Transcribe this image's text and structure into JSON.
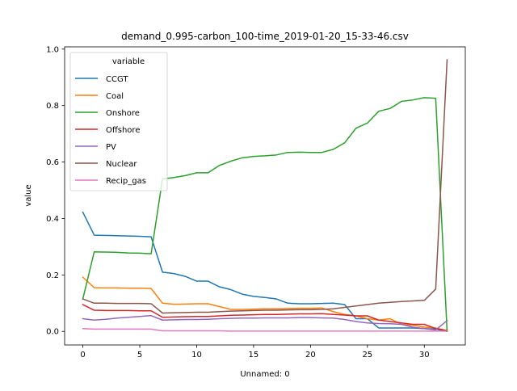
{
  "chart_data": {
    "type": "line",
    "title": "demand_0.995-carbon_100-time_2019-01-20_15-33-46.csv",
    "xlabel": "Unnamed: 0",
    "ylabel": "value",
    "xlim": [
      -1.6,
      33.6
    ],
    "ylim": [
      -0.048,
      1.008
    ],
    "xticks": [
      0,
      5,
      10,
      15,
      20,
      25,
      30
    ],
    "yticks": [
      0.0,
      0.2,
      0.4,
      0.6,
      0.8,
      1.0
    ],
    "xtick_labels": [
      "0",
      "5",
      "10",
      "15",
      "20",
      "25",
      "30"
    ],
    "ytick_labels": [
      "0.0",
      "0.2",
      "0.4",
      "0.6",
      "0.8",
      "1.0"
    ],
    "legend_title": "variable",
    "legend_position": "upper-left",
    "grid": false,
    "x": [
      0,
      1,
      2,
      3,
      4,
      5,
      6,
      7,
      8,
      9,
      10,
      11,
      12,
      13,
      14,
      15,
      16,
      17,
      18,
      19,
      20,
      21,
      22,
      23,
      24,
      25,
      26,
      27,
      28,
      29,
      30,
      31,
      32
    ],
    "series": [
      {
        "name": "CCGT",
        "color": "#1f77b4",
        "values": [
          0.422,
          0.341,
          0.34,
          0.339,
          0.338,
          0.337,
          0.335,
          0.21,
          0.205,
          0.195,
          0.178,
          0.178,
          0.158,
          0.148,
          0.132,
          0.124,
          0.12,
          0.115,
          0.1,
          0.098,
          0.098,
          0.099,
          0.1,
          0.095,
          0.045,
          0.045,
          0.012,
          0.012,
          0.012,
          0.012,
          0.01,
          0.008,
          0.0
        ]
      },
      {
        "name": "Coal",
        "color": "#ff7f0e",
        "values": [
          0.192,
          0.155,
          0.154,
          0.154,
          0.153,
          0.153,
          0.152,
          0.1,
          0.096,
          0.097,
          0.098,
          0.098,
          0.088,
          0.078,
          0.078,
          0.079,
          0.08,
          0.08,
          0.081,
          0.082,
          0.082,
          0.083,
          0.07,
          0.06,
          0.055,
          0.045,
          0.04,
          0.045,
          0.025,
          0.022,
          0.015,
          0.012,
          0.003
        ]
      },
      {
        "name": "Onshore",
        "color": "#2ca02c",
        "values": [
          0.115,
          0.282,
          0.281,
          0.28,
          0.278,
          0.277,
          0.275,
          0.54,
          0.545,
          0.552,
          0.562,
          0.562,
          0.588,
          0.603,
          0.615,
          0.62,
          0.622,
          0.625,
          0.634,
          0.635,
          0.634,
          0.634,
          0.645,
          0.668,
          0.72,
          0.738,
          0.78,
          0.79,
          0.815,
          0.82,
          0.828,
          0.826,
          0.0
        ]
      },
      {
        "name": "Offshore",
        "color": "#d62728",
        "values": [
          0.095,
          0.075,
          0.074,
          0.074,
          0.074,
          0.073,
          0.073,
          0.05,
          0.051,
          0.052,
          0.053,
          0.053,
          0.055,
          0.057,
          0.058,
          0.059,
          0.06,
          0.06,
          0.061,
          0.062,
          0.062,
          0.063,
          0.06,
          0.058,
          0.055,
          0.055,
          0.04,
          0.035,
          0.03,
          0.025,
          0.025,
          0.01,
          0.003
        ]
      },
      {
        "name": "PV",
        "color": "#9467bd",
        "values": [
          0.045,
          0.04,
          0.043,
          0.047,
          0.05,
          0.053,
          0.056,
          0.04,
          0.041,
          0.042,
          0.042,
          0.043,
          0.045,
          0.046,
          0.047,
          0.047,
          0.048,
          0.048,
          0.048,
          0.049,
          0.049,
          0.048,
          0.047,
          0.042,
          0.035,
          0.03,
          0.028,
          0.027,
          0.025,
          0.015,
          0.01,
          0.005,
          0.038
        ]
      },
      {
        "name": "Nuclear",
        "color": "#8c564b",
        "values": [
          0.115,
          0.1,
          0.1,
          0.099,
          0.099,
          0.099,
          0.098,
          0.065,
          0.066,
          0.067,
          0.068,
          0.068,
          0.07,
          0.072,
          0.073,
          0.074,
          0.075,
          0.075,
          0.076,
          0.077,
          0.077,
          0.078,
          0.08,
          0.085,
          0.09,
          0.095,
          0.1,
          0.103,
          0.106,
          0.108,
          0.11,
          0.15,
          0.962
        ]
      },
      {
        "name": "Recip_gas",
        "color": "#e377c2",
        "values": [
          0.01,
          0.008,
          0.008,
          0.008,
          0.008,
          0.008,
          0.008,
          0.002,
          0.002,
          0.002,
          0.002,
          0.002,
          0.002,
          0.001,
          0.001,
          0.001,
          0.001,
          0.001,
          0.001,
          0.001,
          0.001,
          0.001,
          0.001,
          0.001,
          0.001,
          0.001,
          0.001,
          0.001,
          0.001,
          0.001,
          0.001,
          0.001,
          0.001
        ]
      }
    ]
  }
}
